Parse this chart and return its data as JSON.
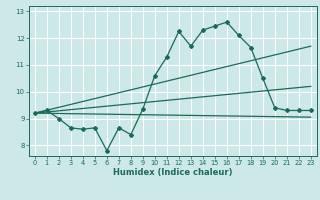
{
  "xlabel": "Humidex (Indice chaleur)",
  "bg_color": "#cce8e8",
  "grid_color": "#ffffff",
  "line_color": "#1a6b5a",
  "xlim": [
    -0.5,
    23.5
  ],
  "ylim": [
    7.6,
    13.2
  ],
  "yticks": [
    8,
    9,
    10,
    11,
    12,
    13
  ],
  "xticks": [
    0,
    1,
    2,
    3,
    4,
    5,
    6,
    7,
    8,
    9,
    10,
    11,
    12,
    13,
    14,
    15,
    16,
    17,
    18,
    19,
    20,
    21,
    22,
    23
  ],
  "line1_x": [
    0,
    1,
    2,
    3,
    4,
    5,
    6,
    7,
    8,
    9,
    10,
    11,
    12,
    13,
    14,
    15,
    16,
    17,
    18,
    19,
    20,
    21,
    22,
    23
  ],
  "line1_y": [
    9.2,
    9.3,
    9.0,
    8.65,
    8.6,
    8.65,
    7.8,
    8.65,
    8.4,
    9.35,
    10.6,
    11.3,
    12.25,
    11.7,
    12.3,
    12.45,
    12.6,
    12.1,
    11.65,
    10.5,
    9.4,
    9.3,
    9.3,
    9.3
  ],
  "line2_x": [
    0,
    23
  ],
  "line2_y": [
    9.2,
    11.7
  ],
  "line3_x": [
    0,
    23
  ],
  "line3_y": [
    9.2,
    10.2
  ],
  "line4_x": [
    0,
    23
  ],
  "line4_y": [
    9.2,
    9.05
  ]
}
